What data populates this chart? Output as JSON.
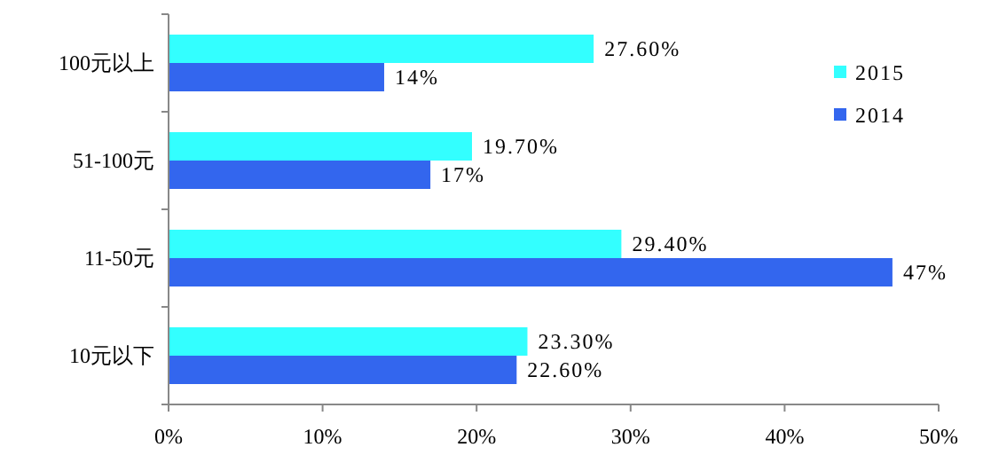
{
  "chart_data": {
    "type": "bar",
    "orientation": "horizontal",
    "categories": [
      "100元以上",
      "51-100元",
      "11-50元",
      "10元以下"
    ],
    "series": [
      {
        "name": "2015",
        "color": "#33ffff",
        "values": [
          27.6,
          19.7,
          29.4,
          23.3
        ],
        "value_labels": [
          "27.60%",
          "19.70%",
          "29.40%",
          "23.30%"
        ]
      },
      {
        "name": "2014",
        "color": "#3366ee",
        "values": [
          14,
          17,
          47,
          22.6
        ],
        "value_labels": [
          "14%",
          "17%",
          "47%",
          "22.60%"
        ]
      }
    ],
    "xlim": [
      0,
      50
    ],
    "xticks": [
      {
        "value": 0,
        "label": "0%"
      },
      {
        "value": 10,
        "label": "10%"
      },
      {
        "value": 20,
        "label": "20%"
      },
      {
        "value": 30,
        "label": "30%"
      },
      {
        "value": 40,
        "label": "40%"
      },
      {
        "value": 50,
        "label": "50%"
      }
    ],
    "grid": false,
    "legend": "top right"
  }
}
